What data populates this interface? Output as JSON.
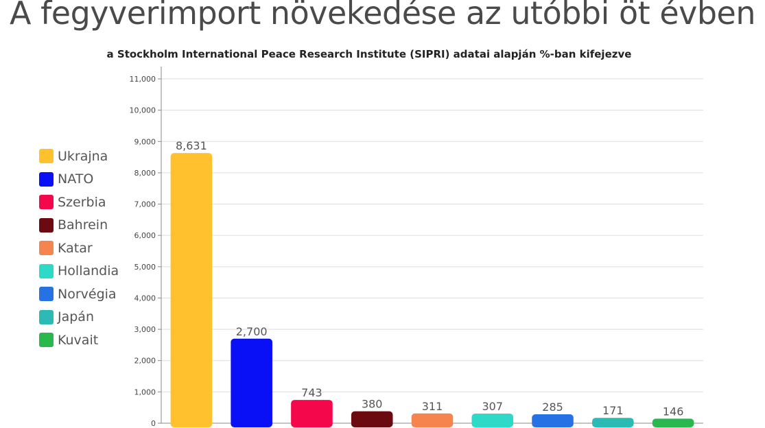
{
  "header": {
    "title": "A fegyverimport növekedése az utóbbi öt évben",
    "subtitle": "a Stockholm International Peace Research Institute (SIPRI) adatai alapján %-ban kifejezve"
  },
  "chart_data": {
    "type": "bar",
    "title": "A fegyverimport növekedése az utóbbi öt évben",
    "subtitle": "a Stockholm International Peace Research Institute (SIPRI) adatai alapján %-ban kifejezve",
    "categories": [
      "Ukrajna",
      "NATO",
      "Szerbia",
      "Bahrein",
      "Katar",
      "Hollandia",
      "Norvégia",
      "Japán",
      "Kuvait"
    ],
    "values": [
      8631,
      2700,
      743,
      380,
      311,
      307,
      285,
      171,
      146
    ],
    "value_labels": [
      "8,631",
      "2,700",
      "743",
      "380",
      "311",
      "307",
      "285",
      "171",
      "146"
    ],
    "colors": [
      "#FFC12E",
      "#0A10F5",
      "#F5074B",
      "#6B0A10",
      "#F5844E",
      "#2ED9C8",
      "#2672E5",
      "#2BBAB4",
      "#2AB84E"
    ],
    "yticks": [
      0,
      1000,
      2000,
      3000,
      4000,
      5000,
      6000,
      7000,
      8000,
      9000,
      10000,
      11000
    ],
    "ytick_labels": [
      "0",
      "1,000",
      "2,000",
      "3,000",
      "4,000",
      "5,000",
      "6,000",
      "7,000",
      "8,000",
      "9,000",
      "10,000",
      "11,000"
    ],
    "ylim": [
      0,
      11000
    ],
    "xlabel": "",
    "ylabel": "",
    "grid": true,
    "legend_position": "left"
  }
}
